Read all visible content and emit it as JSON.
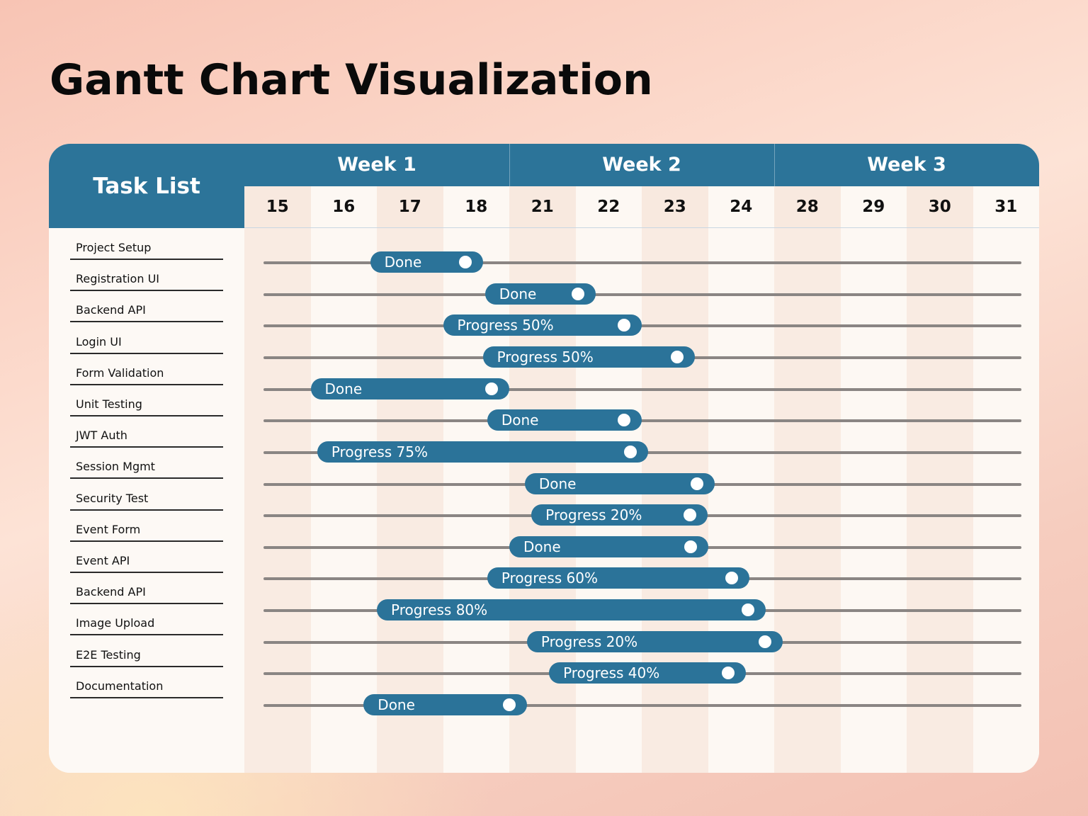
{
  "title": "Gantt Chart Visualization",
  "chart_data": {
    "type": "gantt",
    "task_list_header": "Task List",
    "weeks": [
      {
        "label": "Week 1",
        "days": [
          15,
          16,
          17,
          18
        ]
      },
      {
        "label": "Week 2",
        "days": [
          21,
          22,
          23,
          24
        ]
      },
      {
        "label": "Week 3",
        "days": [
          28,
          29,
          30,
          31
        ]
      }
    ],
    "days": [
      "15",
      "16",
      "17",
      "18",
      "21",
      "22",
      "23",
      "24",
      "28",
      "29",
      "30",
      "31"
    ],
    "tasks": [
      {
        "name": "Project Setup",
        "start": 16.4,
        "end": 18.3,
        "status": "Done"
      },
      {
        "name": "Registration UI",
        "start": 18.4,
        "end": 21.8,
        "status": "Done"
      },
      {
        "name": "Backend API",
        "start": 17.5,
        "end": 22.5,
        "status": "Progress 50%"
      },
      {
        "name": "Login UI",
        "start": 18.3,
        "end": 23.3,
        "status": "Progress 50%"
      },
      {
        "name": "Form Validation",
        "start": 15.5,
        "end": 19.5,
        "status": "Done"
      },
      {
        "name": "Unit Testing",
        "start": 18.5,
        "end": 22.5,
        "status": "Done"
      },
      {
        "name": "JWT Auth",
        "start": 15.6,
        "end": 22.6,
        "status": "Progress 75%"
      },
      {
        "name": "Session Mgmt",
        "start": 20.2,
        "end": 23.6,
        "status": "Done"
      },
      {
        "name": "Security Test",
        "start": 20.5,
        "end": 23.5,
        "status": "Progress 20%"
      },
      {
        "name": "Event Form",
        "start": 19.5,
        "end": 23.5,
        "status": "Done"
      },
      {
        "name": "Event API",
        "start": 18.5,
        "end": 24.5,
        "status": "Progress 60%"
      },
      {
        "name": "Backend API",
        "start": 16.5,
        "end": 25.5,
        "status": "Progress 80%"
      },
      {
        "name": "Image Upload",
        "start": 20.3,
        "end": 26.5,
        "status": "Progress 20%"
      },
      {
        "name": "E2E Testing",
        "start": 21.1,
        "end": 24.3,
        "status": "Progress 40%"
      },
      {
        "name": "Documentation",
        "start": 16.3,
        "end": 20.3,
        "status": "Done"
      }
    ],
    "colors": {
      "header": "#2c7499",
      "bar": "#2b7399",
      "track": "#8a8583",
      "col_dark": "#f9ebe2",
      "col_light": "#fdf8f3"
    }
  }
}
